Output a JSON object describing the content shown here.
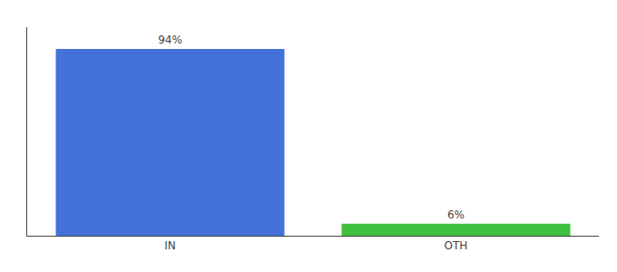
{
  "chart_data": {
    "type": "bar",
    "categories": [
      "IN",
      "OTH"
    ],
    "values": [
      94,
      6
    ],
    "value_labels": [
      "94%",
      "6%"
    ],
    "colors": [
      "#4472DB",
      "#3DBF3D"
    ],
    "ylim": [
      0,
      105
    ],
    "grid": false,
    "data_labels": true,
    "tick_labels": "x"
  }
}
